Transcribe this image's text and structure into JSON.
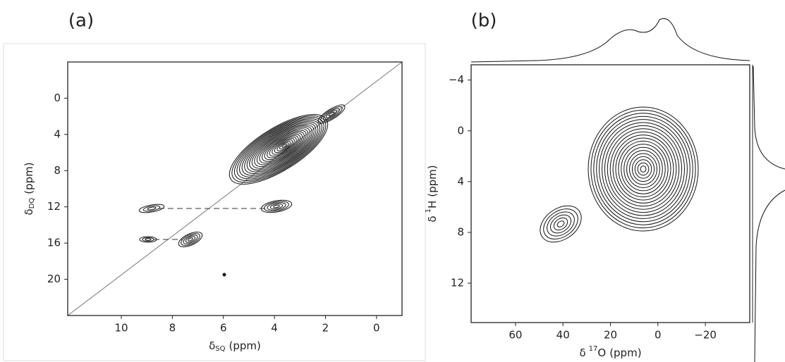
{
  "chart_data": [
    {
      "type": "contour",
      "panel_label": "(a)",
      "xlabel": {
        "symbol": "δ",
        "subscript": "SQ",
        "unit": "(ppm)"
      },
      "ylabel": {
        "symbol": "δ",
        "subscript": "DQ",
        "unit": "(ppm)"
      },
      "xlim": [
        12.1,
        -1
      ],
      "ylim": [
        -4,
        24
      ],
      "xticks": [
        10,
        8,
        6,
        4,
        2,
        0
      ],
      "yticks": [
        0,
        4,
        8,
        12,
        16,
        20
      ]
    },
    {
      "type": "contour",
      "panel_label": "(b)",
      "xlabel": {
        "symbol": "δ",
        "superscript": "17",
        "nucleus": "O",
        "unit": "(ppm)"
      },
      "ylabel": {
        "symbol": "δ",
        "superscript": "1",
        "nucleus": "H",
        "unit": "(ppm)"
      },
      "xlim": [
        78.7,
        -38.7
      ],
      "ylim": [
        -5.2,
        15.1
      ],
      "xticks": [
        60,
        40,
        20,
        0,
        {
          "value": -20,
          "label": "−20"
        }
      ],
      "yticks": [
        {
          "value": -4,
          "label": "−4"
        },
        0,
        4,
        8,
        12
      ]
    }
  ]
}
